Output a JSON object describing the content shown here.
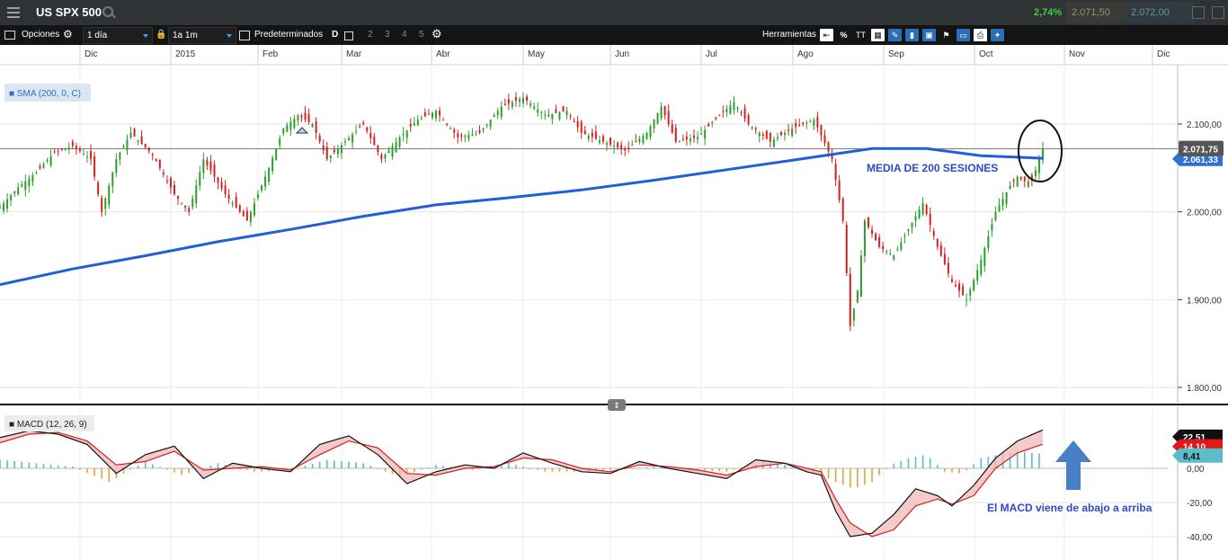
{
  "header": {
    "title": "US SPX 500",
    "change_pct": "2,74%",
    "bid": "2.071,50",
    "ask": "2.072,00",
    "colors": {
      "up": "#3bd13b",
      "bg": "#2f3336"
    }
  },
  "toolbar": {
    "options_label": "Opciones",
    "interval": "1 día",
    "range": "1a 1m",
    "presets_label": "Predeterminados",
    "preset_d": "D",
    "preset_nums": [
      "2",
      "3",
      "4",
      "5"
    ],
    "tools_label": "Herramientas",
    "pct_icon": "%",
    "text_icon": "TT"
  },
  "chart_data": [
    {
      "type": "line",
      "title": "",
      "indicator_label": "■ SMA (200, 0, C)",
      "x_tick_labels": [
        "Dic",
        "2015",
        "Feb",
        "Mar",
        "Abr",
        "May",
        "Jun",
        "Jul",
        "Ago",
        "Sep",
        "Oct",
        "Nov",
        "Dic"
      ],
      "y_tick_labels": [
        "2.100,00",
        "2.000,00",
        "1.900,00",
        "1.800,00"
      ],
      "ylim": [
        1790,
        2150
      ],
      "last_price_label": "2.071,75",
      "sma_price_label": "2.061,33",
      "last_price": 2071.75,
      "sma_last": 2061.33,
      "annotation": "MEDIA DE 200 SESIONES",
      "series": [
        {
          "name": "SMA (200, 0, C)",
          "color": "#1f5fd9",
          "x": [
            0,
            20,
            40,
            60,
            80,
            100,
            120,
            140,
            160,
            180,
            200,
            220,
            240,
            255,
            270,
            287
          ],
          "y": [
            1917,
            1935,
            1950,
            1966,
            1980,
            1995,
            2008,
            2016,
            2025,
            2036,
            2048,
            2060,
            2072,
            2072,
            2064,
            2061
          ]
        },
        {
          "name": "US SPX 500",
          "color": "#2aa02a",
          "x": [
            0,
            5,
            10,
            15,
            20,
            25,
            28,
            32,
            36,
            42,
            48,
            52,
            56,
            62,
            68,
            74,
            78,
            82,
            86,
            90,
            95,
            100,
            105,
            110,
            115,
            120,
            126,
            132,
            138,
            144,
            150,
            156,
            160,
            166,
            172,
            178,
            182,
            186,
            192,
            198,
            202,
            206,
            212,
            218,
            224,
            229,
            232,
            234,
            236,
            238,
            240,
            242,
            246,
            250,
            254,
            258,
            262,
            266,
            270,
            274,
            278,
            280,
            282,
            284,
            286,
            287
          ],
          "y": [
            2005,
            2028,
            2045,
            2068,
            2075,
            2060,
            2000,
            2060,
            2090,
            2065,
            2020,
            2000,
            2060,
            2020,
            1990,
            2050,
            2095,
            2110,
            2100,
            2060,
            2080,
            2100,
            2060,
            2085,
            2105,
            2115,
            2085,
            2090,
            2120,
            2130,
            2110,
            2115,
            2090,
            2080,
            2070,
            2090,
            2120,
            2080,
            2085,
            2110,
            2125,
            2100,
            2080,
            2095,
            2105,
            2060,
            1990,
            1870,
            1910,
            1990,
            1975,
            1960,
            1950,
            1980,
            2010,
            1960,
            1920,
            1900,
            1945,
            2000,
            2030,
            2040,
            2035,
            2035,
            2060,
            2072
          ]
        }
      ]
    },
    {
      "type": "line",
      "title": "",
      "indicator_label": "■ MACD (12, 26, 9)",
      "y_tick_labels": [
        "0,00",
        "-20,00",
        "-40,00"
      ],
      "ylim": [
        -44,
        24
      ],
      "value_labels": [
        "22,51",
        "14,10",
        "8,41"
      ],
      "annotation": "El MACD viene de abajo a arriba",
      "series": [
        {
          "name": "",
          "color": "#111111",
          "x": [
            0,
            8,
            16,
            24,
            32,
            40,
            48,
            56,
            64,
            72,
            80,
            88,
            96,
            104,
            112,
            120,
            128,
            136,
            144,
            152,
            160,
            168,
            176,
            184,
            192,
            200,
            208,
            216,
            222,
            226,
            230,
            234,
            240,
            246,
            252,
            258,
            262,
            268,
            274,
            280,
            287
          ],
          "y": [
            18,
            22,
            20,
            14,
            -3,
            8,
            13,
            -6,
            3,
            0,
            -2,
            14,
            19,
            8,
            -9,
            -2,
            2,
            0,
            9,
            3,
            -2,
            -3,
            4,
            0,
            -3,
            -6,
            5,
            3,
            -2,
            -4,
            -25,
            -40,
            -38,
            -27,
            -12,
            -16,
            -22,
            -10,
            6,
            16,
            22.5
          ]
        },
        {
          "name": "",
          "color": "#d91f1f",
          "x": [
            0,
            8,
            16,
            24,
            32,
            40,
            48,
            56,
            64,
            72,
            80,
            88,
            96,
            104,
            112,
            120,
            128,
            136,
            144,
            152,
            160,
            168,
            176,
            184,
            192,
            200,
            208,
            216,
            222,
            226,
            230,
            234,
            240,
            246,
            252,
            258,
            262,
            268,
            274,
            280,
            287
          ],
          "y": [
            15,
            20,
            21,
            16,
            2,
            4,
            10,
            -1,
            0,
            1,
            -1,
            8,
            16,
            12,
            -3,
            -4,
            0,
            1,
            6,
            5,
            0,
            -2,
            2,
            1,
            -1,
            -4,
            1,
            3,
            0,
            -2,
            -18,
            -32,
            -40,
            -36,
            -22,
            -18,
            -21,
            -16,
            0,
            9,
            14.1
          ]
        },
        {
          "name": "",
          "color": "#5bbccc",
          "x": [
            0,
            10,
            20,
            30,
            40,
            50,
            60,
            70,
            80,
            90,
            100,
            110,
            120,
            130,
            140,
            150,
            160,
            170,
            180,
            190,
            200,
            210,
            215,
            220,
            225,
            230,
            235,
            240,
            245,
            250,
            255,
            260,
            265,
            270,
            275,
            280,
            287
          ],
          "y": [
            5,
            3,
            1,
            -8,
            4,
            -4,
            3,
            -2,
            -1,
            5,
            3,
            -5,
            2,
            -1,
            3,
            -2,
            -2,
            -1,
            1,
            -1,
            -2,
            4,
            3,
            -1,
            -3,
            -8,
            -12,
            -8,
            2,
            6,
            8,
            -2,
            -3,
            6,
            8,
            10,
            8.41
          ]
        }
      ]
    }
  ]
}
